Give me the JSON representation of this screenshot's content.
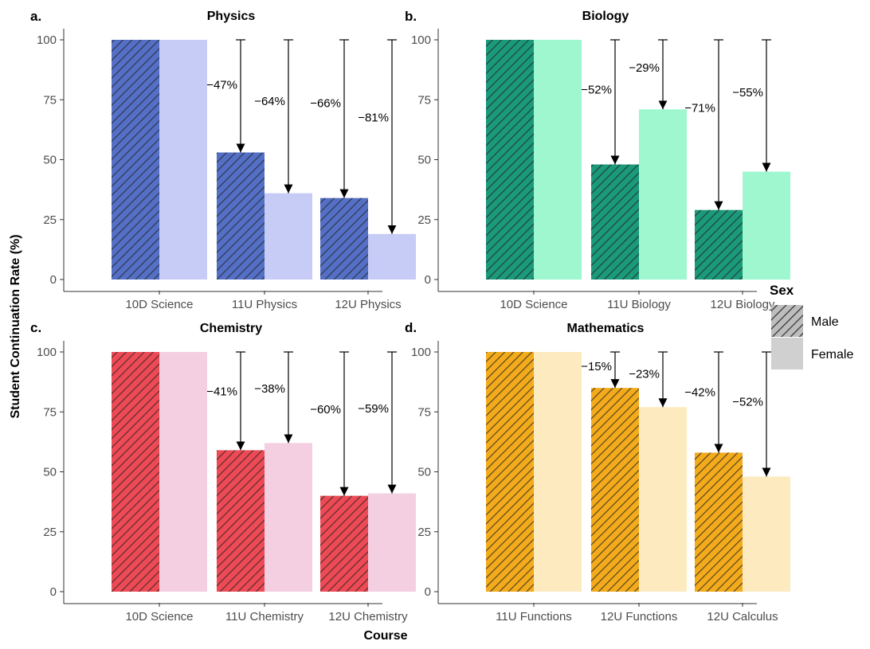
{
  "figure": {
    "xlabel": "Course",
    "ylabel": "Student Continuation Rate (%)"
  },
  "legend": {
    "title": "Sex",
    "placement": "right",
    "items": [
      {
        "key": "male",
        "label": "Male",
        "style": "hatched"
      },
      {
        "key": "female",
        "label": "Female",
        "style": "solid-light"
      }
    ]
  },
  "chart_data": [
    {
      "type": "bar",
      "tag": "a.",
      "title": "Physics",
      "categories": [
        "10D Science",
        "11U Physics",
        "12U Physics"
      ],
      "ylim": [
        0,
        100
      ],
      "yticks": [
        0,
        25,
        50,
        75,
        100
      ],
      "grid": false,
      "colors": {
        "male": "#5470c6",
        "female": "#c6ccf5"
      },
      "series": [
        {
          "name": "Male",
          "key": "male",
          "values": [
            100,
            53,
            34
          ]
        },
        {
          "name": "Female",
          "key": "female",
          "values": [
            100,
            36,
            19
          ]
        }
      ],
      "annotations": [
        {
          "category": 1,
          "series": "male",
          "label": "−47%"
        },
        {
          "category": 1,
          "series": "female",
          "label": "−64%"
        },
        {
          "category": 2,
          "series": "male",
          "label": "−66%"
        },
        {
          "category": 2,
          "series": "female",
          "label": "−81%"
        }
      ]
    },
    {
      "type": "bar",
      "tag": "b.",
      "title": "Biology",
      "categories": [
        "10D Science",
        "11U Biology",
        "12U Biology"
      ],
      "ylim": [
        0,
        100
      ],
      "yticks": [
        0,
        25,
        50,
        75,
        100
      ],
      "grid": false,
      "colors": {
        "male": "#1a9a7a",
        "female": "#9ef7cf"
      },
      "series": [
        {
          "name": "Male",
          "key": "male",
          "values": [
            100,
            48,
            29
          ]
        },
        {
          "name": "Female",
          "key": "female",
          "values": [
            100,
            71,
            45
          ]
        }
      ],
      "annotations": [
        {
          "category": 1,
          "series": "male",
          "label": "−52%"
        },
        {
          "category": 1,
          "series": "female",
          "label": "−29%"
        },
        {
          "category": 2,
          "series": "male",
          "label": "−71%"
        },
        {
          "category": 2,
          "series": "female",
          "label": "−55%"
        }
      ]
    },
    {
      "type": "bar",
      "tag": "c.",
      "title": "Chemistry",
      "categories": [
        "10D Science",
        "11U Chemistry",
        "12U Chemistry"
      ],
      "ylim": [
        0,
        100
      ],
      "yticks": [
        0,
        25,
        50,
        75,
        100
      ],
      "grid": false,
      "colors": {
        "male": "#ee4a55",
        "female": "#f3cfe1"
      },
      "series": [
        {
          "name": "Male",
          "key": "male",
          "values": [
            100,
            59,
            40
          ]
        },
        {
          "name": "Female",
          "key": "female",
          "values": [
            100,
            62,
            41
          ]
        }
      ],
      "annotations": [
        {
          "category": 1,
          "series": "male",
          "label": "−41%"
        },
        {
          "category": 1,
          "series": "female",
          "label": "−38%"
        },
        {
          "category": 2,
          "series": "male",
          "label": "−60%"
        },
        {
          "category": 2,
          "series": "female",
          "label": "−59%"
        }
      ]
    },
    {
      "type": "bar",
      "tag": "d.",
      "title": "Mathematics",
      "categories": [
        "11U Functions",
        "12U Functions",
        "12U Calculus"
      ],
      "ylim": [
        0,
        100
      ],
      "yticks": [
        0,
        25,
        50,
        75,
        100
      ],
      "grid": false,
      "colors": {
        "male": "#f3ab1c",
        "female": "#fdeabf"
      },
      "series": [
        {
          "name": "Male",
          "key": "male",
          "values": [
            100,
            85,
            58
          ]
        },
        {
          "name": "Female",
          "key": "female",
          "values": [
            100,
            77,
            48
          ]
        }
      ],
      "annotations": [
        {
          "category": 1,
          "series": "male",
          "label": "−15%"
        },
        {
          "category": 1,
          "series": "female",
          "label": "−23%"
        },
        {
          "category": 2,
          "series": "male",
          "label": "−42%"
        },
        {
          "category": 2,
          "series": "female",
          "label": "−52%"
        }
      ]
    }
  ]
}
